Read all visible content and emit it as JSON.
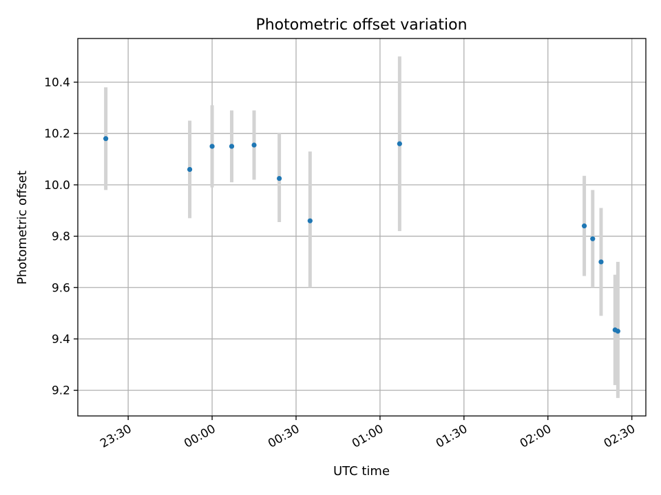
{
  "chart_data": {
    "type": "scatter",
    "title": "Photometric offset variation",
    "xlabel": "UTC time",
    "ylabel": "Photometric offset",
    "x_axis": {
      "kind": "time",
      "xlim": [
        "23:12",
        "02:35"
      ],
      "ticks": [
        "23:30",
        "00:00",
        "00:30",
        "01:00",
        "01:30",
        "02:00",
        "02:30"
      ],
      "tick_label_rotation_deg": 30
    },
    "y_axis": {
      "ylim": [
        9.1,
        10.57
      ],
      "ticks": [
        "9.2",
        "9.4",
        "9.6",
        "9.8",
        "10.0",
        "10.2",
        "10.4"
      ]
    },
    "grid": true,
    "legend": "none",
    "marker_color": "#1f77b4",
    "errorbar_color": "#d3d3d3",
    "points": [
      {
        "x": "23:22",
        "y": 10.18,
        "err_low": 9.98,
        "err_high": 10.38
      },
      {
        "x": "23:52",
        "y": 10.06,
        "err_low": 9.87,
        "err_high": 10.25
      },
      {
        "x": "00:00",
        "y": 10.15,
        "err_low": 9.99,
        "err_high": 10.31
      },
      {
        "x": "00:07",
        "y": 10.15,
        "err_low": 10.01,
        "err_high": 10.29
      },
      {
        "x": "00:15",
        "y": 10.155,
        "err_low": 10.02,
        "err_high": 10.29
      },
      {
        "x": "00:24",
        "y": 10.025,
        "err_low": 9.855,
        "err_high": 10.2
      },
      {
        "x": "00:35",
        "y": 9.86,
        "err_low": 9.6,
        "err_high": 10.13
      },
      {
        "x": "01:07",
        "y": 10.16,
        "err_low": 9.82,
        "err_high": 10.5
      },
      {
        "x": "02:13",
        "y": 9.84,
        "err_low": 9.645,
        "err_high": 10.035
      },
      {
        "x": "02:16",
        "y": 9.79,
        "err_low": 9.6,
        "err_high": 9.98
      },
      {
        "x": "02:19",
        "y": 9.7,
        "err_low": 9.49,
        "err_high": 9.91
      },
      {
        "x": "02:24",
        "y": 9.435,
        "err_low": 9.22,
        "err_high": 9.65
      },
      {
        "x": "02:25",
        "y": 9.43,
        "err_low": 9.17,
        "err_high": 9.7
      }
    ]
  }
}
